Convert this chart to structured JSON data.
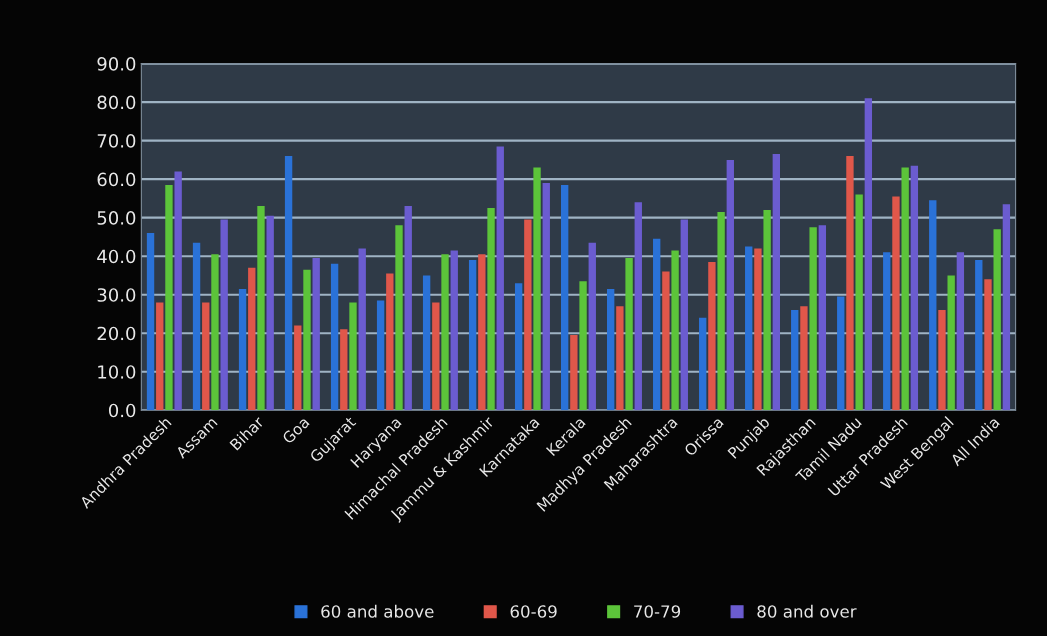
{
  "chart_data": {
    "type": "bar",
    "categories": [
      "Andhra Pradesh",
      "Assam",
      "Bihar",
      "Goa",
      "Gujarat",
      "Haryana",
      "Himachal Pradesh",
      "Jammu & Kashmir",
      "Karnataka",
      "Kerala",
      "Madhya Pradesh",
      "Maharashtra",
      "Orissa",
      "Punjab",
      "Rajasthan",
      "Tamil Nadu",
      "Uttar Pradesh",
      "West Bengal",
      "All India"
    ],
    "series": [
      {
        "name": "60 and above",
        "color": "#2a72d8",
        "values": [
          46,
          43.5,
          31.5,
          66,
          38,
          28.5,
          35,
          39,
          33,
          58.5,
          31.5,
          44.5,
          24,
          42.5,
          26,
          29.5,
          41,
          54.5,
          39
        ]
      },
      {
        "name": "60-69",
        "color": "#e0574a",
        "values": [
          28,
          28,
          37,
          22,
          21,
          35.5,
          28,
          40.5,
          49.5,
          19.5,
          27,
          36,
          38.5,
          42,
          27,
          66,
          55.5,
          26,
          34
        ]
      },
      {
        "name": "70-79",
        "color": "#5cc43a",
        "values": [
          58.5,
          40.5,
          53,
          36.5,
          28,
          48,
          40.5,
          52.5,
          63,
          33.5,
          39.5,
          41.5,
          51.5,
          52,
          47.5,
          56,
          63,
          35,
          47
        ]
      },
      {
        "name": "80 and over",
        "color": "#6b5cd0",
        "values": [
          62,
          49.5,
          50.5,
          39.5,
          42,
          53,
          41.5,
          68.5,
          59,
          43.5,
          54,
          49.5,
          65,
          66.5,
          48,
          81,
          63.5,
          41,
          53.5
        ]
      }
    ],
    "ylim": [
      0,
      90
    ],
    "yticks": [
      {
        "value": 0,
        "label": "0.0"
      },
      {
        "value": 10,
        "label": "10.0"
      },
      {
        "value": 20,
        "label": "20.0"
      },
      {
        "value": 30,
        "label": "30.0"
      },
      {
        "value": 40,
        "label": "40.0"
      },
      {
        "value": 50,
        "label": "50.0"
      },
      {
        "value": 60,
        "label": "60.0"
      },
      {
        "value": 70,
        "label": "70.0"
      },
      {
        "value": 80,
        "label": "80.0"
      },
      {
        "value": 90,
        "label": "90.0"
      }
    ],
    "grid": "y",
    "legend": "bottom"
  }
}
